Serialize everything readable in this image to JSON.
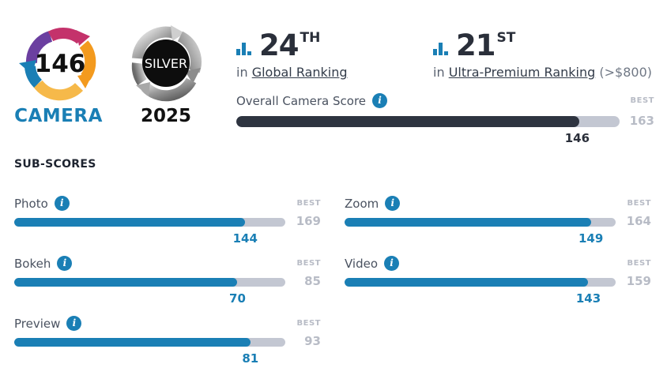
{
  "camera_logo": {
    "score": "146",
    "label": "CAMERA",
    "icon": "dxomark-camera-score-logo"
  },
  "badge": {
    "label": "SILVER",
    "year": "2025",
    "icon": "silver-medal-badge"
  },
  "rankings": [
    {
      "icon": "bar-chart-icon",
      "number": "24",
      "suffix": "TH",
      "prefix": "in",
      "link": "Global Ranking",
      "extra": ""
    },
    {
      "icon": "bar-chart-icon",
      "number": "21",
      "suffix": "ST",
      "prefix": "in",
      "link": "Ultra-Premium Ranking",
      "extra": "(>$800)"
    }
  ],
  "overall": {
    "label": "Overall Camera Score",
    "best_label": "BEST",
    "best": 163,
    "value": 146,
    "fraction": 0.8957
  },
  "subscores_title": "SUB-SCORES",
  "subscores": [
    {
      "label": "Photo",
      "best_label": "BEST",
      "best": 169,
      "value": 144,
      "fraction": 0.852
    },
    {
      "label": "Zoom",
      "best_label": "BEST",
      "best": 164,
      "value": 149,
      "fraction": 0.9085
    },
    {
      "label": "Bokeh",
      "best_label": "BEST",
      "best": 85,
      "value": 70,
      "fraction": 0.8235
    },
    {
      "label": "Video",
      "best_label": "BEST",
      "best": 159,
      "value": 143,
      "fraction": 0.8994
    },
    {
      "label": "Preview",
      "best_label": "BEST",
      "best": 93,
      "value": 81,
      "fraction": 0.871
    }
  ],
  "colors": {
    "accent": "#1a7fb5",
    "dark_bar": "#2e3440",
    "track": "#c3c7d2",
    "best": "#b8bcc6"
  }
}
